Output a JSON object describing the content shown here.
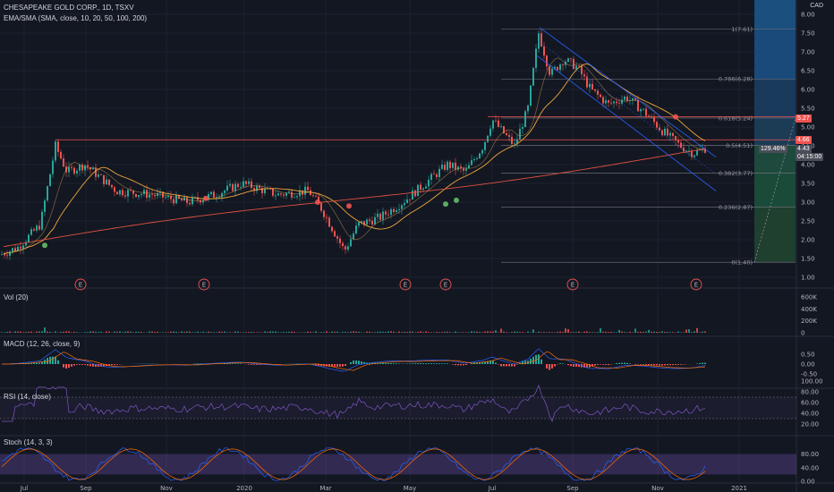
{
  "header": {
    "symbol": "CHESAPEAKE GOLD CORP., 1D, TSXV",
    "indicator": "EMA/SMA (SMA, close, 10, 20, 50, 100, 200)",
    "currency": "CAD"
  },
  "price_axis": {
    "ticks": [
      "8.00",
      "7.50",
      "7.00",
      "6.50",
      "6.00",
      "5.50",
      "5.00",
      "4.50",
      "4.00",
      "3.50",
      "3.00",
      "2.50",
      "2.00",
      "1.50",
      "1.00"
    ],
    "range": [
      1.0,
      8.0
    ]
  },
  "fib_levels": [
    {
      "label": "1(7.61)",
      "value": 7.61
    },
    {
      "label": "0.786(6.28)",
      "value": 6.28
    },
    {
      "label": "0.618(5.24)",
      "value": 5.24
    },
    {
      "label": "0.5(4.51)",
      "value": 4.51
    },
    {
      "label": "0.382(3.77)",
      "value": 3.77
    },
    {
      "label": "0.236(2.87)",
      "value": 2.87
    },
    {
      "label": "0(1.40)",
      "value": 1.4
    }
  ],
  "price_tags": {
    "red1": "5.27",
    "red2": "4.66",
    "pct": "129.46%",
    "current": "4.43",
    "timer": "04:15:00"
  },
  "earnings_marker": "E",
  "volume": {
    "label": "Vol (20)",
    "ticks": [
      "600K",
      "400K",
      "200K",
      "0"
    ]
  },
  "macd": {
    "label": "MACD (12, 26, close, 9)",
    "ticks": [
      "0.50",
      "0.00",
      "-0.50"
    ]
  },
  "rsi": {
    "label": "RSI (14, close)",
    "ticks": [
      "100.00",
      "80.00",
      "60.00",
      "40.00",
      "20.00"
    ]
  },
  "stoch": {
    "label": "Stoch (14, 3, 3)",
    "ticks": [
      "80.00",
      "40.00",
      "0.00"
    ]
  },
  "time_axis": [
    "Jul",
    "Sep",
    "Nov",
    "2020",
    "Mar",
    "May",
    "Jul",
    "Sep",
    "Nov",
    "2021"
  ],
  "colors": {
    "bg": "#131722",
    "up": "#26a69a",
    "down": "#ef5350",
    "grid": "#2a2e39"
  }
}
